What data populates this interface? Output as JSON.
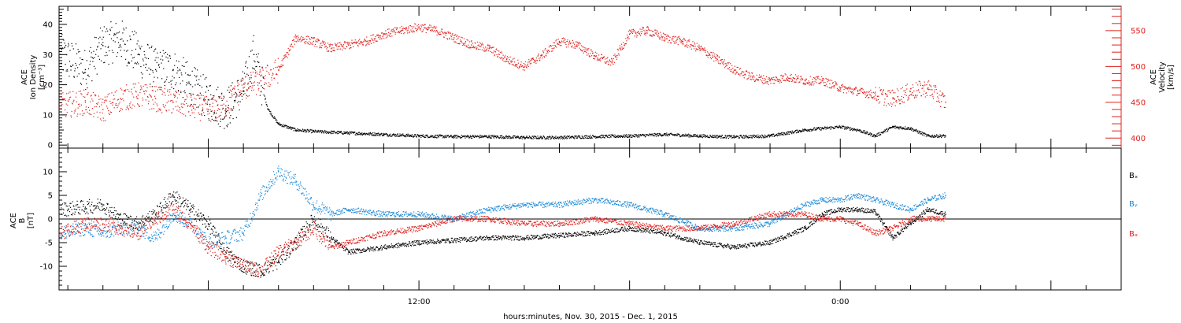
{
  "colors": {
    "black": "#000000",
    "red": "#e0201c",
    "blue": "#1a88d8"
  },
  "time_axis_label": "hours:minutes, Nov. 30, 2015 - Dec. 1, 2015",
  "chart_data": [
    {
      "type": "scatter",
      "panel": "top",
      "xlim": [
        1.75,
        32.0
      ],
      "x_ticks": [
        {
          "value": 12,
          "label": "12:00"
        },
        {
          "value": 24,
          "label": "0:00"
        }
      ],
      "ylabel_left": [
        "ACE",
        "Ion Density",
        "[cm⁻³]"
      ],
      "ylim_left": [
        -1,
        46
      ],
      "yticks_left": [
        0,
        10,
        20,
        30,
        40
      ],
      "ylabel_right": [
        "ACE",
        "Velocity",
        "[km/s]"
      ],
      "ylim_right": [
        386,
        584
      ],
      "yticks_right": [
        400,
        450,
        500,
        550
      ],
      "series": [
        {
          "color": "#000000",
          "axis": "left",
          "x": [
            1.8,
            2.5,
            3.0,
            3.5,
            4.0,
            4.5,
            5.0,
            5.5,
            6.0,
            6.5,
            7.0,
            7.3,
            7.7,
            8.0,
            8.5,
            9.0,
            10.0,
            11.0,
            12.0,
            13.0,
            14.0,
            15.0,
            16.0,
            17.0,
            18.0,
            19.0,
            20.0,
            21.0,
            22.0,
            23.0,
            23.5,
            24.0,
            24.5,
            25.0,
            25.5,
            26.0,
            26.5,
            27.0
          ],
          "y": [
            30,
            25,
            33,
            35,
            30,
            25,
            25,
            20,
            15,
            12,
            18,
            30,
            12,
            7,
            5,
            4.5,
            4,
            3.5,
            3,
            2.8,
            2.8,
            2.5,
            2.5,
            2.8,
            3,
            3.5,
            3,
            2.7,
            3,
            5,
            5.5,
            6,
            5,
            3,
            6,
            5.5,
            3,
            3
          ]
        },
        {
          "color": "#e0201c",
          "axis": "right",
          "x": [
            1.8,
            2.5,
            3.0,
            3.5,
            4.0,
            4.5,
            5.0,
            5.5,
            6.0,
            6.5,
            7.0,
            7.5,
            8.0,
            8.5,
            9.0,
            9.5,
            10.0,
            10.5,
            11.0,
            11.5,
            12.0,
            12.5,
            13.0,
            13.5,
            14.0,
            14.5,
            15.0,
            15.5,
            16.0,
            16.5,
            17.0,
            17.5,
            18.0,
            18.5,
            19.0,
            19.5,
            20.0,
            20.5,
            21.0,
            21.5,
            22.0,
            22.5,
            23.0,
            23.5,
            24.0,
            24.5,
            25.0,
            25.5,
            26.0,
            26.5,
            27.0
          ],
          "y": [
            445,
            450,
            440,
            455,
            460,
            455,
            450,
            445,
            440,
            445,
            470,
            480,
            495,
            540,
            535,
            525,
            530,
            535,
            545,
            550,
            555,
            550,
            540,
            530,
            525,
            510,
            500,
            515,
            535,
            530,
            515,
            505,
            545,
            550,
            540,
            535,
            525,
            510,
            495,
            485,
            480,
            485,
            480,
            480,
            470,
            465,
            460,
            455,
            465,
            470,
            450
          ]
        }
      ]
    },
    {
      "type": "scatter",
      "panel": "bottom",
      "xlim": [
        1.75,
        32.0
      ],
      "x_ticks": [
        {
          "value": 12,
          "label": "12:00"
        },
        {
          "value": 24,
          "label": "0:00"
        }
      ],
      "ylabel_left": [
        "ACE",
        "B",
        "[nT]"
      ],
      "ylim_left": [
        -15,
        15
      ],
      "yticks_left": [
        -10,
        -5,
        0,
        5,
        10
      ],
      "zero_line": true,
      "legend_position": "right",
      "series": [
        {
          "name": "Bₓ",
          "color": "#000000",
          "x": [
            1.8,
            2.5,
            3.0,
            3.5,
            4.0,
            4.5,
            5.0,
            5.5,
            6.0,
            6.5,
            7.0,
            7.5,
            8.0,
            8.5,
            9.0,
            9.5,
            10.0,
            11.0,
            12.0,
            13.0,
            14.0,
            15.0,
            16.0,
            17.0,
            18.0,
            19.0,
            20.0,
            21.0,
            22.0,
            23.0,
            23.5,
            24.0,
            24.5,
            25.0,
            25.5,
            26.0,
            26.5,
            27.0
          ],
          "y": [
            2,
            2.5,
            3,
            0,
            -1,
            1,
            5,
            2,
            -1,
            -7,
            -10,
            -11,
            -9,
            -5,
            0,
            -4,
            -7,
            -6,
            -5,
            -4.5,
            -4,
            -4,
            -3.5,
            -3,
            -2,
            -3,
            -5,
            -6,
            -5,
            -2,
            1,
            2,
            2,
            1.5,
            -4,
            -1,
            2,
            1
          ]
        },
        {
          "name": "Bᵧ",
          "color": "#1a88d8",
          "x": [
            1.8,
            2.5,
            3.0,
            3.5,
            4.0,
            4.5,
            5.0,
            5.5,
            6.0,
            6.5,
            7.0,
            7.5,
            8.0,
            8.5,
            9.0,
            9.5,
            10.0,
            11.0,
            12.0,
            13.0,
            14.0,
            15.0,
            16.0,
            17.0,
            18.0,
            19.0,
            20.0,
            21.0,
            22.0,
            23.0,
            23.5,
            24.0,
            24.5,
            25.0,
            25.5,
            26.0,
            26.5,
            27.0
          ],
          "y": [
            -3,
            -2,
            -3,
            -2,
            -2,
            -4,
            1,
            -1,
            -5,
            -4,
            -3,
            5,
            10,
            8,
            3,
            1,
            2,
            1,
            1,
            0,
            2,
            3,
            3,
            4,
            3,
            1,
            -2,
            -2,
            -1,
            3,
            4,
            4,
            5,
            4,
            3,
            2,
            4,
            5
          ]
        },
        {
          "name": "Bₔ",
          "color": "#e0201c",
          "x": [
            1.8,
            2.5,
            3.0,
            3.5,
            4.0,
            4.5,
            5.0,
            5.5,
            6.0,
            6.5,
            7.0,
            7.5,
            8.0,
            8.5,
            9.0,
            9.5,
            10.0,
            11.0,
            12.0,
            13.0,
            14.0,
            15.0,
            16.0,
            17.0,
            18.0,
            19.0,
            20.0,
            21.0,
            22.0,
            23.0,
            23.5,
            24.0,
            24.5,
            25.0,
            25.5,
            26.0,
            26.5,
            27.0
          ],
          "y": [
            -3,
            -1,
            -1,
            -2,
            -3,
            0,
            2,
            -1,
            -6,
            -8,
            -10,
            -11,
            -7,
            -5,
            -2,
            -6,
            -5,
            -3,
            -2,
            0,
            0,
            -1,
            -1,
            0,
            -1,
            -2,
            -2,
            -1,
            1,
            1,
            0,
            0,
            -1,
            -3,
            -2,
            0,
            0,
            0
          ]
        }
      ]
    }
  ]
}
